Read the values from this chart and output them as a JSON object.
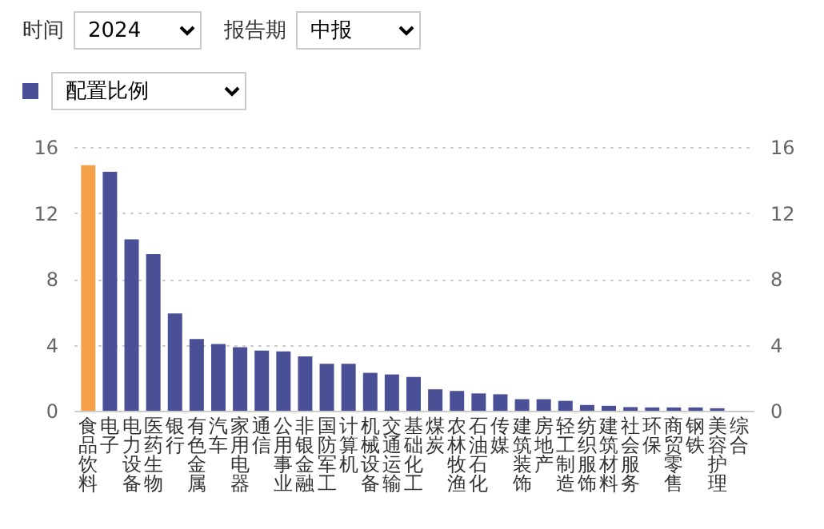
{
  "chart_data": {
    "type": "bar",
    "annotations": [
      "时间",
      "2024",
      "报告期",
      "中报"
    ],
    "categories": [
      "食品饮料",
      "电子",
      "电力设备",
      "医药生物",
      "银行",
      "有色金属",
      "汽车",
      "家用电器",
      "通信",
      "公用事业",
      "非银金融",
      "国防军工",
      "计算机",
      "机械设备",
      "交通运输",
      "基础化工",
      "煤炭",
      "农林牧渔",
      "石油石化",
      "传媒",
      "建筑装饰",
      "房地产",
      "轻工制造",
      "纺织服饰",
      "建筑材料",
      "社会服务",
      "环保",
      "商贸零售",
      "钢铁",
      "美容护理",
      "综合"
    ],
    "series": [
      {
        "name": "配置比例",
        "color": "#4a5096",
        "colors": [
          "#f5a14a",
          "#4a5096",
          "#4a5096",
          "#4a5096",
          "#4a5096",
          "#4a5096",
          "#4a5096",
          "#4a5096",
          "#4a5096",
          "#4a5096",
          "#4a5096",
          "#4a5096",
          "#4a5096",
          "#4a5096",
          "#4a5096",
          "#4a5096",
          "#4a5096",
          "#4a5096",
          "#4a5096",
          "#4a5096",
          "#4a5096",
          "#4a5096",
          "#4a5096",
          "#4a5096",
          "#4a5096",
          "#4a5096",
          "#4a5096",
          "#4a5096",
          "#4a5096",
          "#4a5096",
          "#4a5096"
        ],
        "values": [
          14.9,
          14.5,
          10.4,
          9.5,
          5.9,
          4.35,
          4.05,
          3.85,
          3.65,
          3.6,
          3.3,
          2.85,
          2.85,
          2.3,
          2.2,
          2.05,
          1.3,
          1.2,
          1.05,
          1.0,
          0.7,
          0.7,
          0.6,
          0.35,
          0.3,
          0.22,
          0.2,
          0.2,
          0.2,
          0.15,
          0
        ]
      }
    ],
    "ylim": [
      0,
      16
    ],
    "yticks": [
      0,
      4,
      8,
      12,
      16
    ],
    "y2lim": [
      0,
      16
    ],
    "y2ticks": [
      0,
      4,
      8,
      12,
      16
    ],
    "grid": "y",
    "legend": "top left"
  }
}
